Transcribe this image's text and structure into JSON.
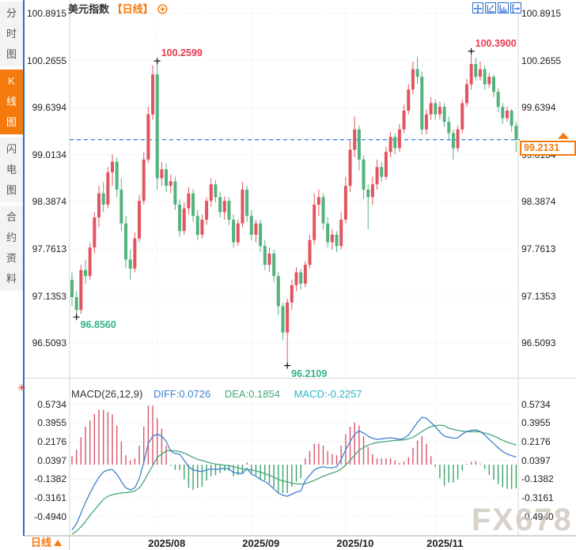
{
  "header": {
    "title": "美元指数",
    "period_tag": "【日线】"
  },
  "sidebar": {
    "tabs": [
      {
        "label": "分时图",
        "active": false
      },
      {
        "label": "K线图",
        "active": true
      },
      {
        "label": "闪电图",
        "active": false
      },
      {
        "label": "合约资料",
        "active": false
      }
    ]
  },
  "toolbar": {
    "icons": [
      "pan",
      "zoom-x-axis",
      "zoom-y-axis",
      "go-to-latest"
    ]
  },
  "price_axis_labels": [
    "100.8915",
    "100.2655",
    "99.6394",
    "99.0134",
    "98.3874",
    "97.7613",
    "97.1353",
    "96.5093"
  ],
  "macd_axis_labels": [
    "0.5734",
    "0.3955",
    "0.2176",
    "0.0397",
    "-0.1382",
    "-0.3161",
    "-0.4940"
  ],
  "annotations": {
    "high1": "100.2599",
    "high2": "100.3900",
    "low1": "96.8560",
    "low2": "96.2109"
  },
  "current_price": {
    "value": "99.2131"
  },
  "macd_header": {
    "title": "MACD(26,12,9)",
    "diff": "DIFF:0.0726",
    "dea": "DEA:0.1854",
    "macd": "MACD:-0.2257"
  },
  "footer": {
    "period": "日线"
  },
  "watermark": "FX678",
  "colors": {
    "accent_orange": "#f47a0d",
    "up_red": "#e25560",
    "down_green": "#54b27e",
    "ann_red": "#e73a4e",
    "ann_green": "#2fb388",
    "diff_blue": "#3d82d0",
    "dea_green": "#45a878",
    "macd_cyan": "#29b6c5",
    "dashed_blue": "#2b7ae0",
    "icon_blue": "#2a6fd2",
    "grid": "#dedede",
    "border": "#d5d5d5",
    "axis_text": "#222",
    "hist_red": "#d9566a",
    "hist_green": "#3aa368",
    "marker_cross": "#111"
  },
  "chart_data": {
    "type": "candlestick+macd",
    "title": "美元指数 日线 (US Dollar Index, daily)",
    "x_labels": [
      "2025/08",
      "2025/09",
      "2025/10",
      "2025/11"
    ],
    "month_start_indices": [
      19,
      40,
      61,
      81
    ],
    "price_axis_values": [
      100.8915,
      100.2655,
      99.6394,
      99.0134,
      98.3874,
      97.7613,
      97.1353,
      96.5093
    ],
    "macd_axis_values": [
      0.5734,
      0.3955,
      0.2176,
      0.0397,
      -0.1382,
      -0.3161,
      -0.494
    ],
    "current_price": 99.2131,
    "markers": [
      {
        "index": 19,
        "type": "high",
        "value": 100.2599,
        "bind": "annotations.high1"
      },
      {
        "index": 89,
        "type": "high",
        "value": 100.39,
        "bind": "annotations.high2"
      },
      {
        "index": 1,
        "type": "low",
        "value": 96.856,
        "bind": "annotations.low1"
      },
      {
        "index": 48,
        "type": "low",
        "value": 96.2109,
        "bind": "annotations.low2"
      }
    ],
    "candles_ohlc": [
      [
        97.35,
        97.45,
        97.0,
        97.12
      ],
      [
        97.12,
        97.2,
        96.856,
        96.95
      ],
      [
        96.95,
        97.55,
        96.9,
        97.48
      ],
      [
        97.48,
        97.62,
        97.3,
        97.4
      ],
      [
        97.4,
        97.85,
        97.35,
        97.78
      ],
      [
        97.78,
        98.25,
        97.7,
        98.18
      ],
      [
        98.18,
        98.6,
        98.05,
        98.5
      ],
      [
        98.5,
        98.65,
        98.25,
        98.35
      ],
      [
        98.35,
        98.85,
        98.3,
        98.78
      ],
      [
        98.78,
        99.02,
        98.6,
        98.92
      ],
      [
        98.92,
        98.98,
        98.45,
        98.55
      ],
      [
        98.55,
        98.7,
        98.0,
        98.1
      ],
      [
        98.1,
        98.2,
        97.5,
        97.62
      ],
      [
        97.62,
        97.75,
        97.35,
        97.5
      ],
      [
        97.5,
        97.98,
        97.45,
        97.9
      ],
      [
        97.9,
        98.48,
        97.85,
        98.4
      ],
      [
        98.4,
        99.05,
        98.35,
        98.95
      ],
      [
        98.95,
        99.65,
        98.9,
        99.55
      ],
      [
        99.55,
        100.2,
        99.48,
        100.08
      ],
      [
        100.08,
        100.2599,
        98.55,
        98.7
      ],
      [
        98.7,
        98.92,
        98.6,
        98.82
      ],
      [
        98.82,
        98.9,
        98.52,
        98.6
      ],
      [
        98.6,
        98.75,
        98.5,
        98.66
      ],
      [
        98.66,
        98.72,
        98.28,
        98.35
      ],
      [
        98.35,
        98.42,
        97.92,
        98.0
      ],
      [
        98.0,
        98.38,
        97.95,
        98.3
      ],
      [
        98.3,
        98.58,
        98.22,
        98.5
      ],
      [
        98.5,
        98.56,
        98.12,
        98.2
      ],
      [
        98.2,
        98.28,
        97.88,
        97.95
      ],
      [
        97.95,
        98.22,
        97.9,
        98.15
      ],
      [
        98.15,
        98.45,
        98.08,
        98.4
      ],
      [
        98.4,
        98.7,
        98.32,
        98.62
      ],
      [
        98.62,
        98.68,
        98.38,
        98.45
      ],
      [
        98.45,
        98.52,
        98.18,
        98.25
      ],
      [
        98.25,
        98.46,
        98.15,
        98.4
      ],
      [
        98.4,
        98.45,
        98.08,
        98.15
      ],
      [
        98.15,
        98.22,
        97.78,
        97.85
      ],
      [
        97.85,
        98.15,
        97.8,
        98.1
      ],
      [
        98.1,
        98.65,
        98.05,
        98.55
      ],
      [
        98.55,
        98.6,
        98.12,
        98.2
      ],
      [
        98.2,
        98.28,
        97.88,
        97.95
      ],
      [
        97.95,
        98.15,
        97.85,
        98.1
      ],
      [
        98.1,
        98.15,
        97.72,
        97.8
      ],
      [
        97.8,
        97.88,
        97.48,
        97.55
      ],
      [
        97.55,
        97.78,
        97.45,
        97.7
      ],
      [
        97.7,
        97.75,
        97.32,
        97.4
      ],
      [
        97.4,
        97.45,
        96.88,
        97.0
      ],
      [
        97.0,
        97.05,
        96.55,
        96.65
      ],
      [
        96.65,
        97.1,
        96.2109,
        97.05
      ],
      [
        97.05,
        97.35,
        96.95,
        97.28
      ],
      [
        97.28,
        97.52,
        97.2,
        97.45
      ],
      [
        97.45,
        97.5,
        97.22,
        97.3
      ],
      [
        97.3,
        97.6,
        97.25,
        97.55
      ],
      [
        97.55,
        97.95,
        97.5,
        97.88
      ],
      [
        97.88,
        98.5,
        97.82,
        98.35
      ],
      [
        98.35,
        98.55,
        98.2,
        98.45
      ],
      [
        98.45,
        98.5,
        98.02,
        98.1
      ],
      [
        98.1,
        98.18,
        97.78,
        97.85
      ],
      [
        97.85,
        98.02,
        97.75,
        97.95
      ],
      [
        97.95,
        98.0,
        97.72,
        97.8
      ],
      [
        97.8,
        98.25,
        97.75,
        98.15
      ],
      [
        98.15,
        98.72,
        98.1,
        98.6
      ],
      [
        98.6,
        99.2,
        98.52,
        99.08
      ],
      [
        99.08,
        99.52,
        98.98,
        99.35
      ],
      [
        99.35,
        99.4,
        98.8,
        98.95
      ],
      [
        98.95,
        99.0,
        98.42,
        98.55
      ],
      [
        98.55,
        98.62,
        98.02,
        98.45
      ],
      [
        98.45,
        98.72,
        98.35,
        98.62
      ],
      [
        98.62,
        98.95,
        98.55,
        98.85
      ],
      [
        98.85,
        98.92,
        98.65,
        98.72
      ],
      [
        98.72,
        99.12,
        98.68,
        99.05
      ],
      [
        99.05,
        99.32,
        98.98,
        99.25
      ],
      [
        99.25,
        99.3,
        99.02,
        99.1
      ],
      [
        99.1,
        99.42,
        99.05,
        99.35
      ],
      [
        99.35,
        99.68,
        99.3,
        99.6
      ],
      [
        99.6,
        99.95,
        99.55,
        99.88
      ],
      [
        99.88,
        100.25,
        99.82,
        100.15
      ],
      [
        100.15,
        100.32,
        99.95,
        100.05
      ],
      [
        100.05,
        100.12,
        99.28,
        99.35
      ],
      [
        99.35,
        99.62,
        99.28,
        99.55
      ],
      [
        99.55,
        99.78,
        99.48,
        99.7
      ],
      [
        99.7,
        99.75,
        99.48,
        99.55
      ],
      [
        99.55,
        99.72,
        99.48,
        99.65
      ],
      [
        99.65,
        99.7,
        99.38,
        99.45
      ],
      [
        99.45,
        99.52,
        99.22,
        99.3
      ],
      [
        99.3,
        99.35,
        98.95,
        99.1
      ],
      [
        99.1,
        99.4,
        99.05,
        99.35
      ],
      [
        99.35,
        99.75,
        99.3,
        99.7
      ],
      [
        99.7,
        100.02,
        99.65,
        99.95
      ],
      [
        99.95,
        100.39,
        99.88,
        100.22
      ],
      [
        100.22,
        100.3,
        100.0,
        100.05
      ],
      [
        100.05,
        100.25,
        100.0,
        100.15
      ],
      [
        100.15,
        100.2,
        99.88,
        99.95
      ],
      [
        99.95,
        100.1,
        99.9,
        100.05
      ],
      [
        100.05,
        100.08,
        99.78,
        99.85
      ],
      [
        99.85,
        99.9,
        99.58,
        99.65
      ],
      [
        99.65,
        99.7,
        99.42,
        99.5
      ],
      [
        99.5,
        99.65,
        99.45,
        99.6
      ],
      [
        99.6,
        99.62,
        99.32,
        99.4
      ],
      [
        99.4,
        99.45,
        99.05,
        99.2131
      ]
    ],
    "macd_diff": [
      -0.62,
      -0.56,
      -0.46,
      -0.36,
      -0.27,
      -0.19,
      -0.12,
      -0.07,
      -0.05,
      -0.047,
      -0.09,
      -0.16,
      -0.22,
      -0.24,
      -0.22,
      -0.13,
      0.02,
      0.2,
      0.27,
      0.29,
      0.27,
      0.22,
      0.13,
      0.105,
      0.1,
      0.04,
      -0.02,
      -0.05,
      -0.06,
      -0.065,
      -0.05,
      -0.04,
      -0.045,
      -0.04,
      -0.035,
      -0.04,
      -0.075,
      -0.08,
      -0.085,
      -0.035,
      -0.09,
      -0.11,
      -0.14,
      -0.16,
      -0.19,
      -0.23,
      -0.27,
      -0.29,
      -0.3,
      -0.28,
      -0.26,
      -0.25,
      -0.15,
      -0.1,
      -0.05,
      -0.03,
      -0.02,
      -0.03,
      -0.03,
      -0.02,
      0.05,
      0.14,
      0.22,
      0.29,
      0.32,
      0.3,
      0.27,
      0.25,
      0.24,
      0.245,
      0.25,
      0.255,
      0.25,
      0.24,
      0.25,
      0.28,
      0.34,
      0.4,
      0.45,
      0.44,
      0.4,
      0.36,
      0.31,
      0.27,
      0.26,
      0.25,
      0.255,
      0.29,
      0.315,
      0.325,
      0.33,
      0.315,
      0.28,
      0.24,
      0.2,
      0.16,
      0.125,
      0.1,
      0.085,
      0.0726
    ],
    "macd_dea": [
      -0.66,
      -0.63,
      -0.59,
      -0.54,
      -0.48,
      -0.43,
      -0.38,
      -0.33,
      -0.3,
      -0.285,
      -0.275,
      -0.27,
      -0.265,
      -0.26,
      -0.25,
      -0.22,
      -0.16,
      -0.08,
      -0.01,
      0.07,
      0.1,
      0.13,
      0.135,
      0.13,
      0.125,
      0.11,
      0.09,
      0.07,
      0.05,
      0.04,
      0.025,
      0.015,
      0.005,
      0.0,
      -0.005,
      -0.01,
      -0.02,
      -0.03,
      -0.04,
      -0.045,
      -0.05,
      -0.06,
      -0.07,
      -0.085,
      -0.1,
      -0.12,
      -0.14,
      -0.155,
      -0.165,
      -0.175,
      -0.18,
      -0.185,
      -0.18,
      -0.165,
      -0.15,
      -0.13,
      -0.11,
      -0.095,
      -0.08,
      -0.065,
      -0.04,
      -0.005,
      0.04,
      0.09,
      0.135,
      0.165,
      0.185,
      0.2,
      0.21,
      0.215,
      0.22,
      0.225,
      0.23,
      0.232,
      0.235,
      0.245,
      0.26,
      0.285,
      0.315,
      0.34,
      0.36,
      0.37,
      0.375,
      0.37,
      0.345,
      0.335,
      0.325,
      0.318,
      0.312,
      0.312,
      0.314,
      0.31,
      0.3,
      0.288,
      0.272,
      0.252,
      0.232,
      0.214,
      0.2,
      0.1854
    ],
    "macd_hist_rule": "hist = 2*(diff-dea)"
  }
}
